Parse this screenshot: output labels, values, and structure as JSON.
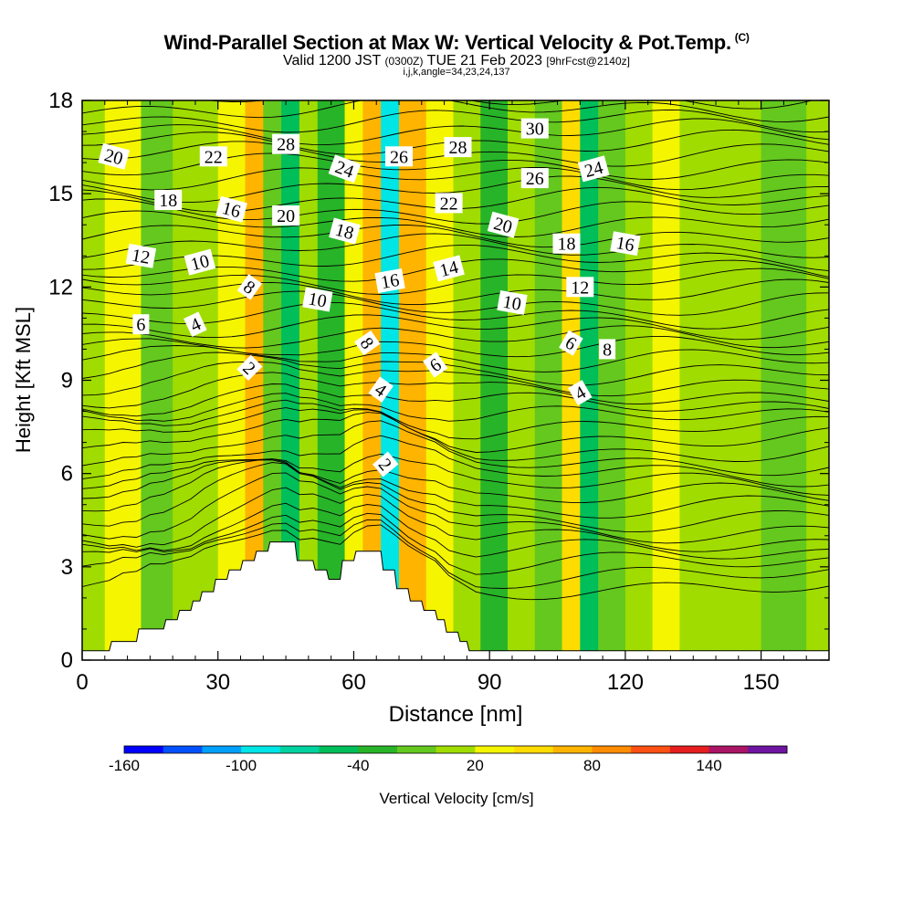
{
  "title": {
    "main": "Wind-Parallel Section at Max W: Vertical Velocity & Pot.Temp.",
    "copyright": "(C)",
    "valid_prefix": "Valid 1200 JST",
    "valid_z": "(0300Z)",
    "valid_date": "TUE 21 Feb 2023",
    "forecast": "[9hrFcst@2140z]",
    "indices": "i,j,k,angle=34,23,24,137"
  },
  "chart_data": {
    "type": "heatmap",
    "xlabel": "Distance [nm]",
    "ylabel": "Height [Kft MSL]",
    "xlim": [
      0,
      165
    ],
    "ylim": [
      0,
      18
    ],
    "x_ticks": [
      "0",
      "30",
      "60",
      "90",
      "120",
      "150"
    ],
    "y_ticks": [
      "0",
      "3",
      "6",
      "9",
      "12",
      "15",
      "18"
    ],
    "colorbar": {
      "label": "Vertical Velocity [cm/s]",
      "tick_labels": [
        "-160",
        "-100",
        "-40",
        "20",
        "80",
        "140"
      ],
      "levels": [
        -160,
        -140,
        -120,
        -100,
        -80,
        -60,
        -40,
        -20,
        0,
        20,
        40,
        60,
        80,
        100,
        120,
        140,
        160
      ],
      "colors": [
        "#0000ff",
        "#0050ff",
        "#00a0ff",
        "#00e6e6",
        "#00d2a0",
        "#00be5a",
        "#28b428",
        "#64c81e",
        "#a0dc00",
        "#f5f500",
        "#ffdc00",
        "#ffb400",
        "#ff8c00",
        "#ff5014",
        "#e61e1e",
        "#aa1464",
        "#6e14a0"
      ]
    },
    "vertical_velocity_bands": [
      {
        "x": 0,
        "w_cm_s": 10
      },
      {
        "x": 5,
        "w_cm_s": 20
      },
      {
        "x": 13,
        "w_cm_s": -10
      },
      {
        "x": 20,
        "w_cm_s": 15
      },
      {
        "x": 30,
        "w_cm_s": 30
      },
      {
        "x": 36,
        "w_cm_s": 60
      },
      {
        "x": 40,
        "w_cm_s": -20
      },
      {
        "x": 44,
        "w_cm_s": -50
      },
      {
        "x": 48,
        "w_cm_s": 10
      },
      {
        "x": 52,
        "w_cm_s": -30
      },
      {
        "x": 58,
        "w_cm_s": 30
      },
      {
        "x": 62,
        "w_cm_s": 60
      },
      {
        "x": 66,
        "w_cm_s": -90
      },
      {
        "x": 70,
        "w_cm_s": 70
      },
      {
        "x": 76,
        "w_cm_s": 30
      },
      {
        "x": 82,
        "w_cm_s": 15
      },
      {
        "x": 88,
        "w_cm_s": -30
      },
      {
        "x": 94,
        "w_cm_s": 10
      },
      {
        "x": 100,
        "w_cm_s": -10
      },
      {
        "x": 106,
        "w_cm_s": 50
      },
      {
        "x": 110,
        "w_cm_s": -60
      },
      {
        "x": 114,
        "w_cm_s": -20
      },
      {
        "x": 120,
        "w_cm_s": 15
      },
      {
        "x": 126,
        "w_cm_s": 30
      },
      {
        "x": 132,
        "w_cm_s": 10
      },
      {
        "x": 140,
        "w_cm_s": 0
      },
      {
        "x": 150,
        "w_cm_s": -10
      },
      {
        "x": 160,
        "w_cm_s": 5
      },
      {
        "x": 165,
        "w_cm_s": 0
      }
    ],
    "terrain": [
      {
        "x": 0,
        "kft": 0.3
      },
      {
        "x": 6,
        "kft": 0.3
      },
      {
        "x": 6.5,
        "kft": 0.6
      },
      {
        "x": 12,
        "kft": 0.6
      },
      {
        "x": 12.5,
        "kft": 1.0
      },
      {
        "x": 18,
        "kft": 1.0
      },
      {
        "x": 18.5,
        "kft": 1.3
      },
      {
        "x": 21,
        "kft": 1.3
      },
      {
        "x": 21.5,
        "kft": 1.6
      },
      {
        "x": 24,
        "kft": 1.6
      },
      {
        "x": 24.5,
        "kft": 1.9
      },
      {
        "x": 26,
        "kft": 1.9
      },
      {
        "x": 26.5,
        "kft": 2.2
      },
      {
        "x": 29,
        "kft": 2.2
      },
      {
        "x": 29.5,
        "kft": 2.6
      },
      {
        "x": 32,
        "kft": 2.6
      },
      {
        "x": 32.5,
        "kft": 2.9
      },
      {
        "x": 35,
        "kft": 2.9
      },
      {
        "x": 35.5,
        "kft": 3.2
      },
      {
        "x": 38,
        "kft": 3.2
      },
      {
        "x": 38.5,
        "kft": 3.5
      },
      {
        "x": 41,
        "kft": 3.5
      },
      {
        "x": 41.5,
        "kft": 3.8
      },
      {
        "x": 47,
        "kft": 3.8
      },
      {
        "x": 47.5,
        "kft": 3.2
      },
      {
        "x": 51,
        "kft": 3.2
      },
      {
        "x": 51.5,
        "kft": 2.9
      },
      {
        "x": 54,
        "kft": 2.9
      },
      {
        "x": 54.5,
        "kft": 2.6
      },
      {
        "x": 57,
        "kft": 2.6
      },
      {
        "x": 57.5,
        "kft": 3.2
      },
      {
        "x": 60,
        "kft": 3.2
      },
      {
        "x": 60.5,
        "kft": 3.5
      },
      {
        "x": 66,
        "kft": 3.5
      },
      {
        "x": 66.5,
        "kft": 2.9
      },
      {
        "x": 69,
        "kft": 2.9
      },
      {
        "x": 69.5,
        "kft": 2.3
      },
      {
        "x": 72,
        "kft": 2.3
      },
      {
        "x": 72.5,
        "kft": 1.9
      },
      {
        "x": 75,
        "kft": 1.9
      },
      {
        "x": 75.5,
        "kft": 1.6
      },
      {
        "x": 78,
        "kft": 1.6
      },
      {
        "x": 78.5,
        "kft": 1.3
      },
      {
        "x": 80,
        "kft": 1.3
      },
      {
        "x": 80.5,
        "kft": 0.9
      },
      {
        "x": 83,
        "kft": 0.9
      },
      {
        "x": 83.5,
        "kft": 0.6
      },
      {
        "x": 85,
        "kft": 0.6
      },
      {
        "x": 85.5,
        "kft": 0.3
      },
      {
        "x": 165,
        "kft": 0.3
      }
    ],
    "theta_contour_labels": [
      {
        "text": "20",
        "x": 7,
        "y": 16.2,
        "rot": 15
      },
      {
        "text": "22",
        "x": 29,
        "y": 16.2,
        "rot": 0
      },
      {
        "text": "28",
        "x": 45,
        "y": 16.6,
        "rot": 0
      },
      {
        "text": "24",
        "x": 58,
        "y": 15.8,
        "rot": 20
      },
      {
        "text": "26",
        "x": 70,
        "y": 16.2,
        "rot": 0
      },
      {
        "text": "28",
        "x": 83,
        "y": 16.5,
        "rot": 0
      },
      {
        "text": "30",
        "x": 100,
        "y": 17.1,
        "rot": 0
      },
      {
        "text": "26",
        "x": 100,
        "y": 15.5,
        "rot": 0
      },
      {
        "text": "24",
        "x": 113,
        "y": 15.8,
        "rot": -15
      },
      {
        "text": "18",
        "x": 19,
        "y": 14.8,
        "rot": 0
      },
      {
        "text": "16",
        "x": 33,
        "y": 14.5,
        "rot": 15
      },
      {
        "text": "20",
        "x": 45,
        "y": 14.3,
        "rot": 0
      },
      {
        "text": "18",
        "x": 58,
        "y": 13.8,
        "rot": 15
      },
      {
        "text": "22",
        "x": 81,
        "y": 14.7,
        "rot": 0
      },
      {
        "text": "20",
        "x": 93,
        "y": 14.0,
        "rot": 15
      },
      {
        "text": "18",
        "x": 107,
        "y": 13.4,
        "rot": 0
      },
      {
        "text": "16",
        "x": 120,
        "y": 13.4,
        "rot": 10
      },
      {
        "text": "12",
        "x": 13,
        "y": 13.0,
        "rot": 10
      },
      {
        "text": "10",
        "x": 26,
        "y": 12.8,
        "rot": -15
      },
      {
        "text": "8",
        "x": 37,
        "y": 12.0,
        "rot": 35
      },
      {
        "text": "10",
        "x": 52,
        "y": 11.6,
        "rot": 10
      },
      {
        "text": "16",
        "x": 68,
        "y": 12.2,
        "rot": -10
      },
      {
        "text": "14",
        "x": 81,
        "y": 12.6,
        "rot": -15
      },
      {
        "text": "12",
        "x": 110,
        "y": 12.0,
        "rot": 0
      },
      {
        "text": "10",
        "x": 95,
        "y": 11.5,
        "rot": 10
      },
      {
        "text": "6",
        "x": 13,
        "y": 10.8,
        "rot": 0
      },
      {
        "text": "4",
        "x": 25,
        "y": 10.8,
        "rot": -25
      },
      {
        "text": "8",
        "x": 63,
        "y": 10.2,
        "rot": 55
      },
      {
        "text": "6",
        "x": 108,
        "y": 10.2,
        "rot": 30
      },
      {
        "text": "8",
        "x": 116,
        "y": 10.0,
        "rot": 0
      },
      {
        "text": "6",
        "x": 78,
        "y": 9.5,
        "rot": -35
      },
      {
        "text": "2",
        "x": 37,
        "y": 9.4,
        "rot": 45
      },
      {
        "text": "4",
        "x": 66,
        "y": 8.7,
        "rot": 35
      },
      {
        "text": "4",
        "x": 110,
        "y": 8.6,
        "rot": -30
      },
      {
        "text": "2",
        "x": 67,
        "y": 6.3,
        "rot": 50
      }
    ]
  }
}
